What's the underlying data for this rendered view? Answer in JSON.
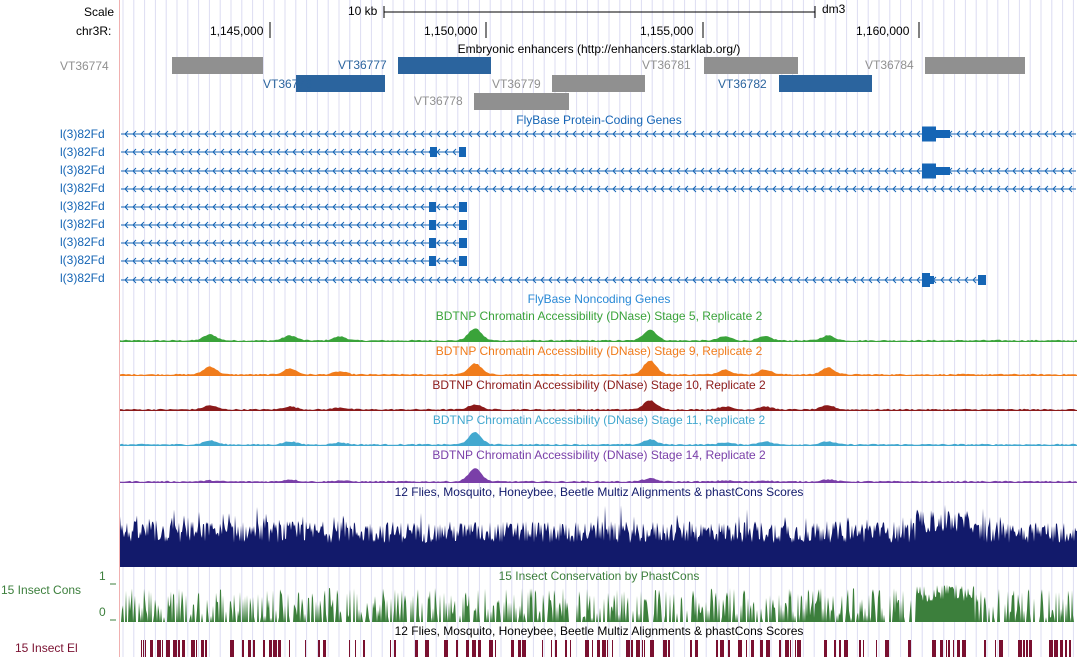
{
  "header": {
    "scale_label": "Scale",
    "scale_bar_label": "10 kb",
    "assembly": "dm3",
    "chrom_label": "chr3R:",
    "positions": [
      "1,145,000",
      "1,150,000",
      "1,155,000",
      "1,160,000"
    ]
  },
  "enhancers": {
    "title": "Embryonic enhancers (http://enhancers.starklab.org/)",
    "items": [
      {
        "name": "VT36774",
        "color": "#909090"
      },
      {
        "name": "VT36776",
        "color": "#2b649e"
      },
      {
        "name": "VT36777",
        "color": "#2b649e"
      },
      {
        "name": "VT36778",
        "color": "#909090"
      },
      {
        "name": "VT36779",
        "color": "#909090"
      },
      {
        "name": "VT36781",
        "color": "#909090"
      },
      {
        "name": "VT36782",
        "color": "#2b649e"
      },
      {
        "name": "VT36784",
        "color": "#909090"
      }
    ]
  },
  "genes": {
    "title": "FlyBase Protein-Coding Genes",
    "color": "#1565b5",
    "rows": [
      "l(3)82Fd",
      "l(3)82Fd",
      "l(3)82Fd",
      "l(3)82Fd",
      "l(3)82Fd",
      "l(3)82Fd",
      "l(3)82Fd",
      "l(3)82Fd",
      "l(3)82Fd"
    ]
  },
  "noncoding": {
    "title": "FlyBase Noncoding Genes",
    "color": "#2a8ad6"
  },
  "dnase": [
    {
      "title": "BDTNP Chromatin Accessibility (DNase) Stage 5, Replicate 2",
      "color": "#3aa33a"
    },
    {
      "title": "BDTNP Chromatin Accessibility (DNase) Stage 9, Replicate 2",
      "color": "#f07c1c"
    },
    {
      "title": "BDTNP Chromatin Accessibility (DNase) Stage 10, Replicate 2",
      "color": "#8b1a1a"
    },
    {
      "title": "BDTNP Chromatin Accessibility (DNase) Stage 11, Replicate 2",
      "color": "#42a8cf"
    },
    {
      "title": "BDTNP Chromatin Accessibility (DNase) Stage 14, Replicate 2",
      "color": "#7a3fa8"
    }
  ],
  "multiz": {
    "title": "12 Flies, Mosquito, Honeybee, Beetle Multiz Alignments & phastCons Scores",
    "color": "#121a6b"
  },
  "phastcons": {
    "title": "15 Insect Conservation by PhastCons",
    "side_label": "15 Insect Cons",
    "max_label": "1",
    "min_label": "0",
    "color": "#3c7f3c"
  },
  "elements": {
    "title": "12 Flies, Mosquito, Honeybee, Beetle Multiz Alignments & phastCons Scores",
    "side_label": "15 Insect El",
    "color": "#7a1030"
  }
}
